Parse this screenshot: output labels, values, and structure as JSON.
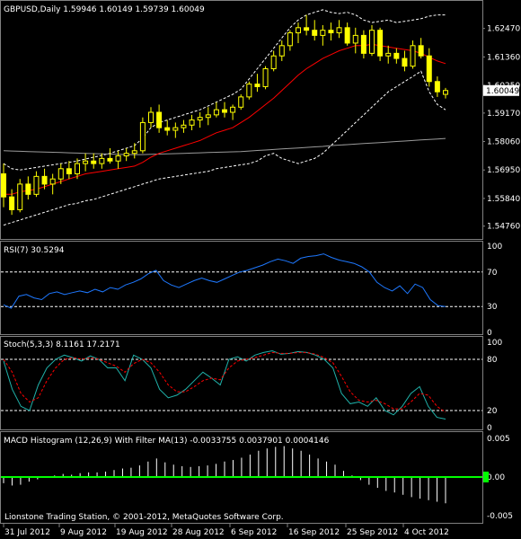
{
  "colors": {
    "background": "#000000",
    "frame": "#808080",
    "candle": "#ffff00",
    "ma_red": "#ff0000",
    "ma_long": "#9a9a9a",
    "bands": "#ffffff",
    "rsi": "#1e78ff",
    "stoch_main": "#20b2aa",
    "stoch_signal": "#ff0000",
    "macd_hist": "#ffffff",
    "macd_filter": "#00ff00",
    "text": "#ffffff"
  },
  "chart_data": [
    {
      "type": "candlestick",
      "title": "GBPUSD,Daily  1.59946 1.60149 1.59739 1.60049",
      "ylim": [
        1.544,
        1.633
      ],
      "yticks": [
        "1.62470",
        "1.61360",
        "1.60250",
        "1.59170",
        "1.58060",
        "1.56950",
        "1.55840",
        "1.54760"
      ],
      "last_price": "1.60049",
      "candles": [
        [
          1.568,
          1.572,
          1.555,
          1.559
        ],
        [
          1.559,
          1.562,
          1.552,
          1.554
        ],
        [
          1.554,
          1.566,
          1.553,
          1.564
        ],
        [
          1.564,
          1.567,
          1.558,
          1.56
        ],
        [
          1.56,
          1.569,
          1.559,
          1.567
        ],
        [
          1.567,
          1.57,
          1.562,
          1.564
        ],
        [
          1.564,
          1.568,
          1.56,
          1.566
        ],
        [
          1.566,
          1.572,
          1.564,
          1.57
        ],
        [
          1.57,
          1.573,
          1.566,
          1.568
        ],
        [
          1.568,
          1.574,
          1.566,
          1.572
        ],
        [
          1.572,
          1.576,
          1.569,
          1.573
        ],
        [
          1.573,
          1.576,
          1.57,
          1.572
        ],
        [
          1.572,
          1.576,
          1.57,
          1.574
        ],
        [
          1.574,
          1.578,
          1.572,
          1.573
        ],
        [
          1.573,
          1.577,
          1.57,
          1.575
        ],
        [
          1.575,
          1.578,
          1.573,
          1.576
        ],
        [
          1.576,
          1.58,
          1.574,
          1.577
        ],
        [
          1.577,
          1.59,
          1.576,
          1.588
        ],
        [
          1.588,
          1.594,
          1.586,
          1.592
        ],
        [
          1.592,
          1.595,
          1.584,
          1.586
        ],
        [
          1.586,
          1.589,
          1.583,
          1.585
        ],
        [
          1.585,
          1.588,
          1.582,
          1.586
        ],
        [
          1.586,
          1.589,
          1.584,
          1.587
        ],
        [
          1.587,
          1.591,
          1.585,
          1.589
        ],
        [
          1.589,
          1.592,
          1.586,
          1.59
        ],
        [
          1.59,
          1.594,
          1.587,
          1.591
        ],
        [
          1.591,
          1.596,
          1.59,
          1.593
        ],
        [
          1.593,
          1.596,
          1.59,
          1.592
        ],
        [
          1.592,
          1.595,
          1.589,
          1.594
        ],
        [
          1.594,
          1.599,
          1.593,
          1.598
        ],
        [
          1.598,
          1.604,
          1.597,
          1.603
        ],
        [
          1.603,
          1.607,
          1.6,
          1.602
        ],
        [
          1.602,
          1.61,
          1.601,
          1.609
        ],
        [
          1.609,
          1.616,
          1.608,
          1.614
        ],
        [
          1.614,
          1.62,
          1.612,
          1.618
        ],
        [
          1.618,
          1.624,
          1.616,
          1.623
        ],
        [
          1.623,
          1.627,
          1.619,
          1.625
        ],
        [
          1.625,
          1.63,
          1.622,
          1.624
        ],
        [
          1.624,
          1.628,
          1.62,
          1.622
        ],
        [
          1.622,
          1.626,
          1.618,
          1.624
        ],
        [
          1.624,
          1.627,
          1.62,
          1.623
        ],
        [
          1.623,
          1.628,
          1.621,
          1.625
        ],
        [
          1.625,
          1.627,
          1.618,
          1.619
        ],
        [
          1.619,
          1.625,
          1.615,
          1.622
        ],
        [
          1.622,
          1.624,
          1.613,
          1.615
        ],
        [
          1.615,
          1.626,
          1.614,
          1.624
        ],
        [
          1.624,
          1.625,
          1.612,
          1.614
        ],
        [
          1.614,
          1.618,
          1.611,
          1.615
        ],
        [
          1.615,
          1.617,
          1.611,
          1.613
        ],
        [
          1.613,
          1.616,
          1.608,
          1.61
        ],
        [
          1.61,
          1.62,
          1.609,
          1.618
        ],
        [
          1.618,
          1.621,
          1.613,
          1.614
        ],
        [
          1.614,
          1.617,
          1.602,
          1.604
        ],
        [
          1.604,
          1.606,
          1.598,
          1.6
        ],
        [
          1.599,
          1.6015,
          1.5974,
          1.6005
        ]
      ],
      "ma_red": [
        1.56,
        1.56,
        1.561,
        1.5615,
        1.562,
        1.563,
        1.564,
        1.565,
        1.566,
        1.567,
        1.568,
        1.5685,
        1.569,
        1.5695,
        1.57,
        1.5705,
        1.571,
        1.5725,
        1.5745,
        1.576,
        1.577,
        1.578,
        1.579,
        1.58,
        1.581,
        1.5825,
        1.584,
        1.585,
        1.586,
        1.588,
        1.59,
        1.5925,
        1.595,
        1.5975,
        1.6005,
        1.6035,
        1.6065,
        1.609,
        1.611,
        1.613,
        1.6145,
        1.616,
        1.617,
        1.618,
        1.618,
        1.6185,
        1.618,
        1.6175,
        1.617,
        1.6165,
        1.616,
        1.615,
        1.6135,
        1.612,
        1.611
      ],
      "ma_long": [
        1.577,
        1.5769,
        1.5768,
        1.5767,
        1.5766,
        1.5765,
        1.5764,
        1.5763,
        1.5762,
        1.5761,
        1.576,
        1.5759,
        1.5758,
        1.5757,
        1.5756,
        1.5755,
        1.5755,
        1.5755,
        1.5756,
        1.5757,
        1.5758,
        1.5759,
        1.576,
        1.5761,
        1.5762,
        1.5763,
        1.5764,
        1.5765,
        1.5766,
        1.5767,
        1.5769,
        1.5771,
        1.5773,
        1.5775,
        1.5777,
        1.5779,
        1.5781,
        1.5783,
        1.5785,
        1.5787,
        1.579,
        1.5792,
        1.5794,
        1.5796,
        1.5798,
        1.58,
        1.5802,
        1.5804,
        1.5806,
        1.5808,
        1.581,
        1.5812,
        1.5814,
        1.5816,
        1.5818
      ],
      "band_upper": [
        1.572,
        1.57,
        1.5695,
        1.57,
        1.5705,
        1.571,
        1.5715,
        1.572,
        1.5725,
        1.573,
        1.5738,
        1.5745,
        1.5752,
        1.576,
        1.577,
        1.578,
        1.579,
        1.582,
        1.586,
        1.588,
        1.589,
        1.59,
        1.591,
        1.592,
        1.593,
        1.5945,
        1.596,
        1.5975,
        1.599,
        1.601,
        1.605,
        1.609,
        1.613,
        1.617,
        1.621,
        1.625,
        1.628,
        1.63,
        1.631,
        1.632,
        1.631,
        1.6305,
        1.631,
        1.63,
        1.628,
        1.627,
        1.6275,
        1.628,
        1.627,
        1.6275,
        1.628,
        1.6285,
        1.6295,
        1.63,
        1.63
      ],
      "band_lower": [
        1.548,
        1.549,
        1.55,
        1.551,
        1.552,
        1.553,
        1.554,
        1.555,
        1.556,
        1.5565,
        1.5575,
        1.558,
        1.559,
        1.56,
        1.561,
        1.562,
        1.563,
        1.564,
        1.565,
        1.566,
        1.5665,
        1.567,
        1.5675,
        1.568,
        1.5685,
        1.569,
        1.57,
        1.5705,
        1.571,
        1.5715,
        1.572,
        1.573,
        1.575,
        1.576,
        1.574,
        1.573,
        1.572,
        1.573,
        1.574,
        1.576,
        1.579,
        1.582,
        1.585,
        1.588,
        1.591,
        1.594,
        1.597,
        1.6,
        1.602,
        1.604,
        1.606,
        1.608,
        1.6,
        1.595,
        1.593
      ],
      "xlabels": [
        "31 Jul 2012",
        "9 Aug 2012",
        "19 Aug 2012",
        "28 Aug 2012",
        "6 Sep 2012",
        "16 Sep 2012",
        "25 Sep 2012",
        "4 Oct 2012"
      ]
    },
    {
      "type": "line",
      "title": "RSI(7) 30.5294",
      "ylim": [
        0,
        100
      ],
      "levels": [
        30,
        70
      ],
      "yticks": [
        "100",
        "70",
        "30",
        "0"
      ],
      "series": [
        {
          "values": [
            32,
            28,
            42,
            44,
            40,
            38,
            45,
            47,
            44,
            46,
            48,
            46,
            50,
            47,
            52,
            50,
            55,
            58,
            62,
            68,
            72,
            60,
            55,
            52,
            56,
            60,
            63,
            60,
            58,
            62,
            66,
            70,
            72,
            75,
            78,
            82,
            85,
            83,
            80,
            86,
            88,
            89,
            91,
            87,
            84,
            82,
            80,
            76,
            70,
            58,
            52,
            48,
            54,
            45,
            56,
            52,
            38,
            31,
            30
          ]
        }
      ]
    },
    {
      "type": "line",
      "title": "Stoch(5,3,3) 8.1161 17.2171",
      "ylim": [
        0,
        100
      ],
      "levels": [
        20,
        80
      ],
      "yticks": [
        "100",
        "80",
        "20",
        "0"
      ],
      "series": [
        {
          "values": [
            78,
            45,
            25,
            20,
            50,
            70,
            80,
            85,
            82,
            78,
            84,
            80,
            70,
            70,
            55,
            85,
            80,
            70,
            45,
            35,
            38,
            45,
            55,
            65,
            58,
            50,
            80,
            83,
            78,
            85,
            88,
            90,
            86,
            87,
            89,
            88,
            85,
            80,
            70,
            40,
            28,
            30,
            25,
            35,
            20,
            15,
            25,
            40,
            48,
            25,
            12,
            10
          ]
        },
        {
          "values": [
            80,
            65,
            40,
            30,
            35,
            55,
            70,
            80,
            82,
            80,
            82,
            80,
            76,
            72,
            65,
            75,
            80,
            76,
            65,
            50,
            42,
            42,
            48,
            55,
            58,
            56,
            70,
            78,
            80,
            82,
            85,
            88,
            87,
            87,
            88,
            88,
            86,
            82,
            76,
            60,
            42,
            32,
            30,
            32,
            28,
            22,
            22,
            30,
            40,
            38,
            25,
            18
          ]
        }
      ]
    },
    {
      "type": "bar",
      "title": "MACD Histogram (12,26,9) With Filter MA(13) -0.0033755 0.0037901 0.0004146",
      "ylim": [
        -0.005,
        0.005
      ],
      "yticks": [
        "0.005",
        "0.00",
        "-0.005"
      ],
      "values": [
        -0.0008,
        -0.0011,
        -0.001,
        -0.0006,
        -0.0003,
        0.0,
        0.0002,
        0.0004,
        0.0003,
        0.0005,
        0.0006,
        0.0006,
        0.0007,
        0.0009,
        0.0011,
        0.0012,
        0.0015,
        0.002,
        0.0024,
        0.0019,
        0.0016,
        0.0014,
        0.0013,
        0.0014,
        0.0015,
        0.0017,
        0.002,
        0.0022,
        0.0025,
        0.0029,
        0.0034,
        0.0037,
        0.0039,
        0.004,
        0.0037,
        0.0034,
        0.0029,
        0.0024,
        0.002,
        0.0016,
        0.0008,
        0.0002,
        -0.0004,
        -0.001,
        -0.0014,
        -0.0018,
        -0.002,
        -0.0023,
        -0.0026,
        -0.0028,
        -0.003,
        -0.0032,
        -0.0034
      ],
      "filter_value": 0.0
    }
  ],
  "footer": {
    "copyright": "Lionstone Trading Station, © 2001-2012, MetaQuotes Software Corp."
  }
}
